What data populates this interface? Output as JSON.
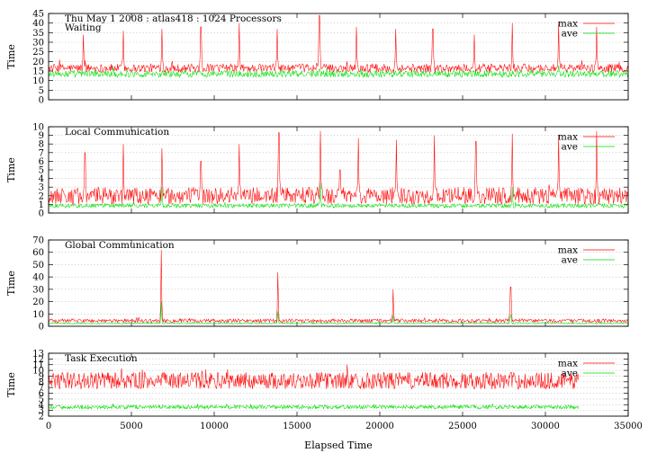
{
  "chart_data": [
    {
      "type": "line",
      "title": "Thu May 1 2008 : atlas418 : 1024 Processors",
      "subtitle": "Waiting",
      "xlabel": "",
      "ylabel": "Time",
      "xlim": [
        0,
        35000
      ],
      "ylim": [
        0,
        45
      ],
      "yticks": [
        "0",
        "5",
        "10",
        "15",
        "20",
        "25",
        "30",
        "35",
        "40",
        "45"
      ],
      "grid": true,
      "legend_position": "top-right",
      "series": [
        {
          "name": "max",
          "color": "#ff0000",
          "base": 16.5,
          "noise": 2.2,
          "spikes": [
            [
              2100,
              34
            ],
            [
              4500,
              36
            ],
            [
              6850,
              37
            ],
            [
              9200,
              38
            ],
            [
              11500,
              40
            ],
            [
              13800,
              37
            ],
            [
              16350,
              44
            ],
            [
              18600,
              38
            ],
            [
              20950,
              37
            ],
            [
              23200,
              37
            ],
            [
              25700,
              34
            ],
            [
              28000,
              40
            ],
            [
              30800,
              40
            ],
            [
              33100,
              38
            ]
          ],
          "x_end": 35000
        },
        {
          "name": "ave",
          "color": "#00dd00",
          "base": 13.5,
          "noise": 1.8,
          "spikes": [
            [
              16350,
              16
            ],
            [
              30800,
              18
            ]
          ],
          "x_end": 35000
        }
      ]
    },
    {
      "type": "line",
      "title": "Local Communication",
      "xlabel": "",
      "ylabel": "Time",
      "xlim": [
        0,
        35000
      ],
      "ylim": [
        0,
        10
      ],
      "yticks": [
        "0",
        "1",
        "2",
        "3",
        "4",
        "5",
        "6",
        "7",
        "8",
        "9",
        "10"
      ],
      "grid": true,
      "legend_position": "top-right",
      "series": [
        {
          "name": "max",
          "color": "#ff0000",
          "base": 2.0,
          "noise": 1.0,
          "spikes": [
            [
              2200,
              7
            ],
            [
              4500,
              8
            ],
            [
              6850,
              7.5
            ],
            [
              9200,
              6
            ],
            [
              11500,
              8
            ],
            [
              13900,
              9.3
            ],
            [
              16400,
              9.5
            ],
            [
              17600,
              5
            ],
            [
              18700,
              8.7
            ],
            [
              21000,
              8.5
            ],
            [
              23300,
              9
            ],
            [
              25800,
              8.3
            ],
            [
              28000,
              9.2
            ],
            [
              30800,
              9
            ],
            [
              33100,
              9.5
            ]
          ],
          "x_end": 35000
        },
        {
          "name": "ave",
          "color": "#00dd00",
          "base": 0.85,
          "noise": 0.25,
          "spikes": [
            [
              6850,
              3
            ],
            [
              16400,
              3.5
            ],
            [
              28000,
              3
            ]
          ],
          "x_end": 35000
        }
      ]
    },
    {
      "type": "line",
      "title": "Global Communication",
      "xlabel": "",
      "ylabel": "Time",
      "xlim": [
        0,
        35000
      ],
      "ylim": [
        0,
        70
      ],
      "yticks": [
        "0",
        "10",
        "20",
        "30",
        "40",
        "50",
        "60",
        "70"
      ],
      "grid": true,
      "legend_position": "top-right",
      "series": [
        {
          "name": "max",
          "color": "#ff0000",
          "base": 4.5,
          "noise": 1.5,
          "spikes": [
            [
              6800,
              62
            ],
            [
              13850,
              44
            ],
            [
              20800,
              30
            ],
            [
              27900,
              32
            ]
          ],
          "x_end": 35000
        },
        {
          "name": "ave",
          "color": "#00dd00",
          "base": 2.5,
          "noise": 0.6,
          "spikes": [
            [
              6800,
              20
            ],
            [
              13850,
              12
            ],
            [
              20800,
              9
            ],
            [
              27900,
              9
            ]
          ],
          "x_end": 35000
        }
      ]
    },
    {
      "type": "line",
      "title": "Task Execution",
      "xlabel": "Elapsed Time",
      "ylabel": "Time",
      "xlim": [
        0,
        35000
      ],
      "ylim": [
        2,
        13
      ],
      "yticks": [
        "2",
        "3",
        "4",
        "5",
        "6",
        "7",
        "8",
        "9",
        "10",
        "11",
        "12",
        "13"
      ],
      "xticks": [
        "0",
        "5000",
        "10000",
        "15000",
        "20000",
        "25000",
        "30000",
        "35000"
      ],
      "grid": true,
      "legend_position": "top-right",
      "series": [
        {
          "name": "max",
          "color": "#ff0000",
          "base": 8.2,
          "noise": 1.5,
          "spikes": [],
          "x_end": 32000
        },
        {
          "name": "ave",
          "color": "#00dd00",
          "base": 3.6,
          "noise": 0.35,
          "spikes": [],
          "x_end": 32000
        }
      ]
    }
  ]
}
